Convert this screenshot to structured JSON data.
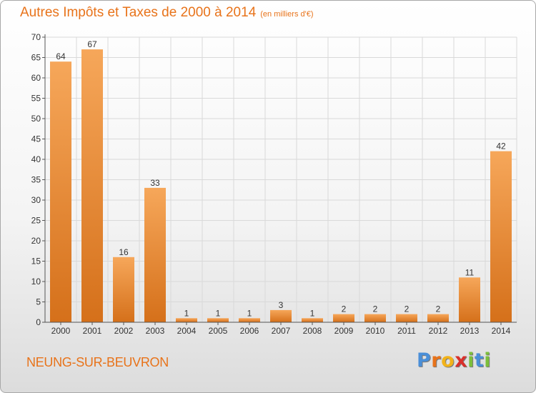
{
  "header": {
    "title": "Autres Impôts et Taxes de 2000 à 2014",
    "subtitle": "(en milliers d'€)"
  },
  "footer": {
    "commune": "NEUNG-SUR-BEUVRON",
    "logo_letters": [
      "P",
      "r",
      "o",
      "x",
      "i",
      "t",
      "i"
    ]
  },
  "colors": {
    "title": "#e8731a",
    "bar_light": "#f6a75a",
    "bar_dark": "#d5701a",
    "grid": "#d9d9d9",
    "axis": "#555555",
    "logo": [
      "#4a8fd8",
      "#e8731a",
      "#f2b31a",
      "#d9302b",
      "#7cbf3a",
      "#4a8fd8",
      "#7cbf3a"
    ]
  },
  "chart_data": {
    "type": "bar",
    "categories": [
      "2000",
      "2001",
      "2002",
      "2003",
      "2004",
      "2005",
      "2006",
      "2007",
      "2008",
      "2009",
      "2010",
      "2011",
      "2012",
      "2013",
      "2014"
    ],
    "values": [
      64,
      67,
      16,
      33,
      1,
      1,
      1,
      3,
      1,
      2,
      2,
      2,
      2,
      11,
      42
    ],
    "ylim": [
      0,
      70
    ],
    "yticks": [
      0,
      5,
      10,
      15,
      20,
      25,
      30,
      35,
      40,
      45,
      50,
      55,
      60,
      65,
      70
    ],
    "grid": true,
    "data_labels": true
  }
}
